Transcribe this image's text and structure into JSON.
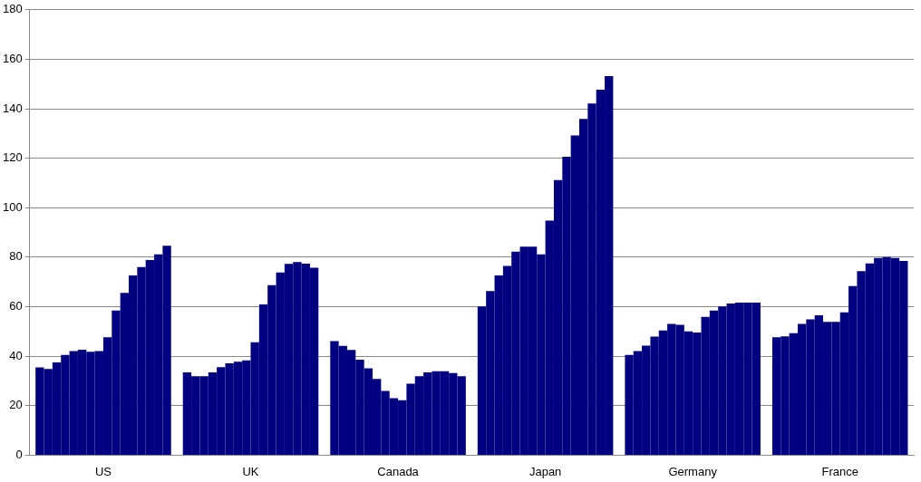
{
  "chart_data": {
    "type": "bar",
    "categories": [
      "US",
      "UK",
      "Canada",
      "Japan",
      "Germany",
      "France"
    ],
    "series": [
      {
        "color": "#000080",
        "values": [
          35.5,
          33.5,
          46.1,
          60.1,
          40.5,
          47.7
        ]
      },
      {
        "color": "#000080",
        "values": [
          34.8,
          31.9,
          44.2,
          66.3,
          42.1,
          48.0
        ]
      },
      {
        "color": "#000080",
        "values": [
          37.5,
          31.9,
          42.5,
          72.6,
          44.3,
          49.3
        ]
      },
      {
        "color": "#000080",
        "values": [
          40.5,
          33.5,
          38.6,
          76.5,
          47.9,
          53.1
        ]
      },
      {
        "color": "#000080",
        "values": [
          42.1,
          35.6,
          35.1,
          82.3,
          50.4,
          54.9
        ]
      },
      {
        "color": "#000080",
        "values": [
          42.6,
          37.1,
          30.8,
          84.3,
          53.1,
          56.5
        ]
      },
      {
        "color": "#000080",
        "values": [
          41.8,
          37.8,
          26.0,
          84.3,
          52.7,
          53.9
        ]
      },
      {
        "color": "#000080",
        "values": [
          42.1,
          38.3,
          23.0,
          81.2,
          50.0,
          53.9
        ]
      },
      {
        "color": "#000080",
        "values": [
          47.7,
          45.6,
          22.2,
          94.8,
          49.6,
          57.7
        ]
      },
      {
        "color": "#000080",
        "values": [
          58.5,
          60.9,
          28.9,
          111.2,
          55.9,
          68.3
        ]
      },
      {
        "color": "#000080",
        "values": [
          65.6,
          68.7,
          31.9,
          120.6,
          58.5,
          74.4
        ]
      },
      {
        "color": "#000080",
        "values": [
          72.6,
          73.8,
          33.5,
          129.2,
          60.1,
          77.5
        ]
      },
      {
        "color": "#000080",
        "values": [
          76.0,
          77.3,
          33.9,
          135.9,
          61.3,
          79.7
        ]
      },
      {
        "color": "#000080",
        "values": [
          78.9,
          78.0,
          33.9,
          142.1,
          61.7,
          80.1
        ]
      },
      {
        "color": "#000080",
        "values": [
          81.2,
          77.4,
          33.2,
          147.7,
          61.7,
          79.7
        ]
      },
      {
        "color": "#000080",
        "values": [
          84.6,
          75.8,
          31.9,
          153.2,
          61.7,
          78.5
        ]
      }
    ],
    "ylim": [
      0,
      180
    ],
    "yticks": [
      0,
      20,
      40,
      60,
      80,
      100,
      120,
      140,
      160,
      180
    ],
    "grid": "y",
    "legend": false
  }
}
